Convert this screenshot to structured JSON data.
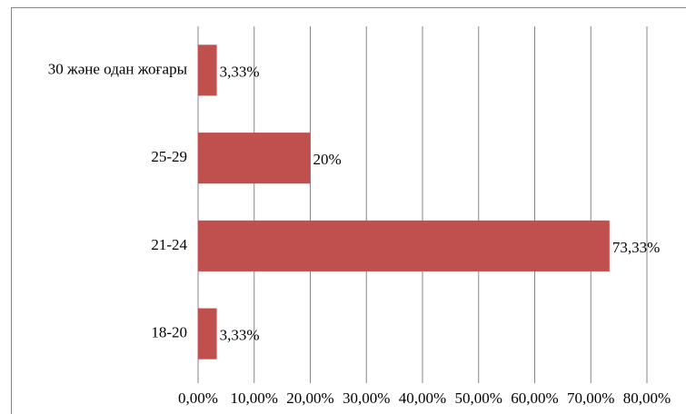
{
  "chart_data": {
    "type": "bar",
    "orientation": "horizontal",
    "categories": [
      "30 және одан жоғары",
      "25-29",
      "21-24",
      "18-20"
    ],
    "values": [
      3.33,
      20,
      73.33,
      3.33
    ],
    "value_labels": [
      "3,33%",
      "20%",
      "73,33%",
      "3,33%"
    ],
    "color": "#c0504d",
    "xlim": [
      0,
      80
    ],
    "xticks": [
      {
        "value": 0,
        "label": "0,00%"
      },
      {
        "value": 10,
        "label": "10,00%"
      },
      {
        "value": 20,
        "label": "20,00%"
      },
      {
        "value": 30,
        "label": "30,00%"
      },
      {
        "value": 40,
        "label": "40,00%"
      },
      {
        "value": 50,
        "label": "50,00%"
      },
      {
        "value": 60,
        "label": "60,00%"
      },
      {
        "value": 70,
        "label": "70,00%"
      },
      {
        "value": 80,
        "label": "80,00%"
      }
    ],
    "grid": true
  }
}
